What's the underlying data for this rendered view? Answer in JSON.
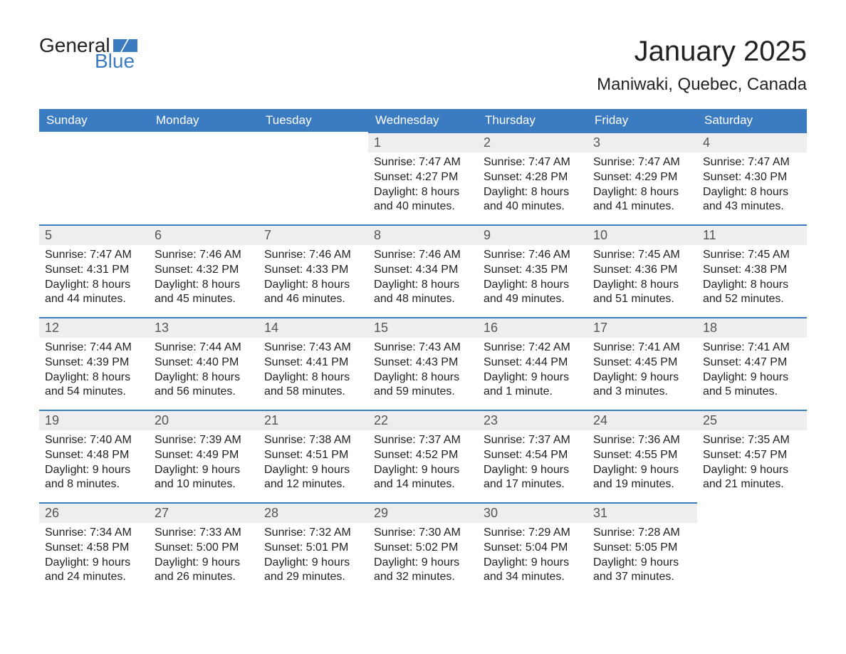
{
  "logo": {
    "text1": "General",
    "text2": "Blue"
  },
  "title": "January 2025",
  "location": "Maniwaki, Quebec, Canada",
  "colors": {
    "header_bg": "#3b7bc2",
    "header_text": "#ffffff",
    "daynum_bg": "#eeeeee",
    "daynum_border": "#3b7bc2",
    "body_text": "#222222",
    "logo_blue": "#3b7bc2",
    "background": "#ffffff"
  },
  "fonts": {
    "title_size": 40,
    "location_size": 24,
    "header_size": 17,
    "daynum_size": 18,
    "body_size": 16
  },
  "weekdays": [
    "Sunday",
    "Monday",
    "Tuesday",
    "Wednesday",
    "Thursday",
    "Friday",
    "Saturday"
  ],
  "weeks": [
    [
      null,
      null,
      null,
      {
        "n": "1",
        "sunrise": "Sunrise: 7:47 AM",
        "sunset": "Sunset: 4:27 PM",
        "d1": "Daylight: 8 hours",
        "d2": "and 40 minutes."
      },
      {
        "n": "2",
        "sunrise": "Sunrise: 7:47 AM",
        "sunset": "Sunset: 4:28 PM",
        "d1": "Daylight: 8 hours",
        "d2": "and 40 minutes."
      },
      {
        "n": "3",
        "sunrise": "Sunrise: 7:47 AM",
        "sunset": "Sunset: 4:29 PM",
        "d1": "Daylight: 8 hours",
        "d2": "and 41 minutes."
      },
      {
        "n": "4",
        "sunrise": "Sunrise: 7:47 AM",
        "sunset": "Sunset: 4:30 PM",
        "d1": "Daylight: 8 hours",
        "d2": "and 43 minutes."
      }
    ],
    [
      {
        "n": "5",
        "sunrise": "Sunrise: 7:47 AM",
        "sunset": "Sunset: 4:31 PM",
        "d1": "Daylight: 8 hours",
        "d2": "and 44 minutes."
      },
      {
        "n": "6",
        "sunrise": "Sunrise: 7:46 AM",
        "sunset": "Sunset: 4:32 PM",
        "d1": "Daylight: 8 hours",
        "d2": "and 45 minutes."
      },
      {
        "n": "7",
        "sunrise": "Sunrise: 7:46 AM",
        "sunset": "Sunset: 4:33 PM",
        "d1": "Daylight: 8 hours",
        "d2": "and 46 minutes."
      },
      {
        "n": "8",
        "sunrise": "Sunrise: 7:46 AM",
        "sunset": "Sunset: 4:34 PM",
        "d1": "Daylight: 8 hours",
        "d2": "and 48 minutes."
      },
      {
        "n": "9",
        "sunrise": "Sunrise: 7:46 AM",
        "sunset": "Sunset: 4:35 PM",
        "d1": "Daylight: 8 hours",
        "d2": "and 49 minutes."
      },
      {
        "n": "10",
        "sunrise": "Sunrise: 7:45 AM",
        "sunset": "Sunset: 4:36 PM",
        "d1": "Daylight: 8 hours",
        "d2": "and 51 minutes."
      },
      {
        "n": "11",
        "sunrise": "Sunrise: 7:45 AM",
        "sunset": "Sunset: 4:38 PM",
        "d1": "Daylight: 8 hours",
        "d2": "and 52 minutes."
      }
    ],
    [
      {
        "n": "12",
        "sunrise": "Sunrise: 7:44 AM",
        "sunset": "Sunset: 4:39 PM",
        "d1": "Daylight: 8 hours",
        "d2": "and 54 minutes."
      },
      {
        "n": "13",
        "sunrise": "Sunrise: 7:44 AM",
        "sunset": "Sunset: 4:40 PM",
        "d1": "Daylight: 8 hours",
        "d2": "and 56 minutes."
      },
      {
        "n": "14",
        "sunrise": "Sunrise: 7:43 AM",
        "sunset": "Sunset: 4:41 PM",
        "d1": "Daylight: 8 hours",
        "d2": "and 58 minutes."
      },
      {
        "n": "15",
        "sunrise": "Sunrise: 7:43 AM",
        "sunset": "Sunset: 4:43 PM",
        "d1": "Daylight: 8 hours",
        "d2": "and 59 minutes."
      },
      {
        "n": "16",
        "sunrise": "Sunrise: 7:42 AM",
        "sunset": "Sunset: 4:44 PM",
        "d1": "Daylight: 9 hours",
        "d2": "and 1 minute."
      },
      {
        "n": "17",
        "sunrise": "Sunrise: 7:41 AM",
        "sunset": "Sunset: 4:45 PM",
        "d1": "Daylight: 9 hours",
        "d2": "and 3 minutes."
      },
      {
        "n": "18",
        "sunrise": "Sunrise: 7:41 AM",
        "sunset": "Sunset: 4:47 PM",
        "d1": "Daylight: 9 hours",
        "d2": "and 5 minutes."
      }
    ],
    [
      {
        "n": "19",
        "sunrise": "Sunrise: 7:40 AM",
        "sunset": "Sunset: 4:48 PM",
        "d1": "Daylight: 9 hours",
        "d2": "and 8 minutes."
      },
      {
        "n": "20",
        "sunrise": "Sunrise: 7:39 AM",
        "sunset": "Sunset: 4:49 PM",
        "d1": "Daylight: 9 hours",
        "d2": "and 10 minutes."
      },
      {
        "n": "21",
        "sunrise": "Sunrise: 7:38 AM",
        "sunset": "Sunset: 4:51 PM",
        "d1": "Daylight: 9 hours",
        "d2": "and 12 minutes."
      },
      {
        "n": "22",
        "sunrise": "Sunrise: 7:37 AM",
        "sunset": "Sunset: 4:52 PM",
        "d1": "Daylight: 9 hours",
        "d2": "and 14 minutes."
      },
      {
        "n": "23",
        "sunrise": "Sunrise: 7:37 AM",
        "sunset": "Sunset: 4:54 PM",
        "d1": "Daylight: 9 hours",
        "d2": "and 17 minutes."
      },
      {
        "n": "24",
        "sunrise": "Sunrise: 7:36 AM",
        "sunset": "Sunset: 4:55 PM",
        "d1": "Daylight: 9 hours",
        "d2": "and 19 minutes."
      },
      {
        "n": "25",
        "sunrise": "Sunrise: 7:35 AM",
        "sunset": "Sunset: 4:57 PM",
        "d1": "Daylight: 9 hours",
        "d2": "and 21 minutes."
      }
    ],
    [
      {
        "n": "26",
        "sunrise": "Sunrise: 7:34 AM",
        "sunset": "Sunset: 4:58 PM",
        "d1": "Daylight: 9 hours",
        "d2": "and 24 minutes."
      },
      {
        "n": "27",
        "sunrise": "Sunrise: 7:33 AM",
        "sunset": "Sunset: 5:00 PM",
        "d1": "Daylight: 9 hours",
        "d2": "and 26 minutes."
      },
      {
        "n": "28",
        "sunrise": "Sunrise: 7:32 AM",
        "sunset": "Sunset: 5:01 PM",
        "d1": "Daylight: 9 hours",
        "d2": "and 29 minutes."
      },
      {
        "n": "29",
        "sunrise": "Sunrise: 7:30 AM",
        "sunset": "Sunset: 5:02 PM",
        "d1": "Daylight: 9 hours",
        "d2": "and 32 minutes."
      },
      {
        "n": "30",
        "sunrise": "Sunrise: 7:29 AM",
        "sunset": "Sunset: 5:04 PM",
        "d1": "Daylight: 9 hours",
        "d2": "and 34 minutes."
      },
      {
        "n": "31",
        "sunrise": "Sunrise: 7:28 AM",
        "sunset": "Sunset: 5:05 PM",
        "d1": "Daylight: 9 hours",
        "d2": "and 37 minutes."
      },
      null
    ]
  ]
}
